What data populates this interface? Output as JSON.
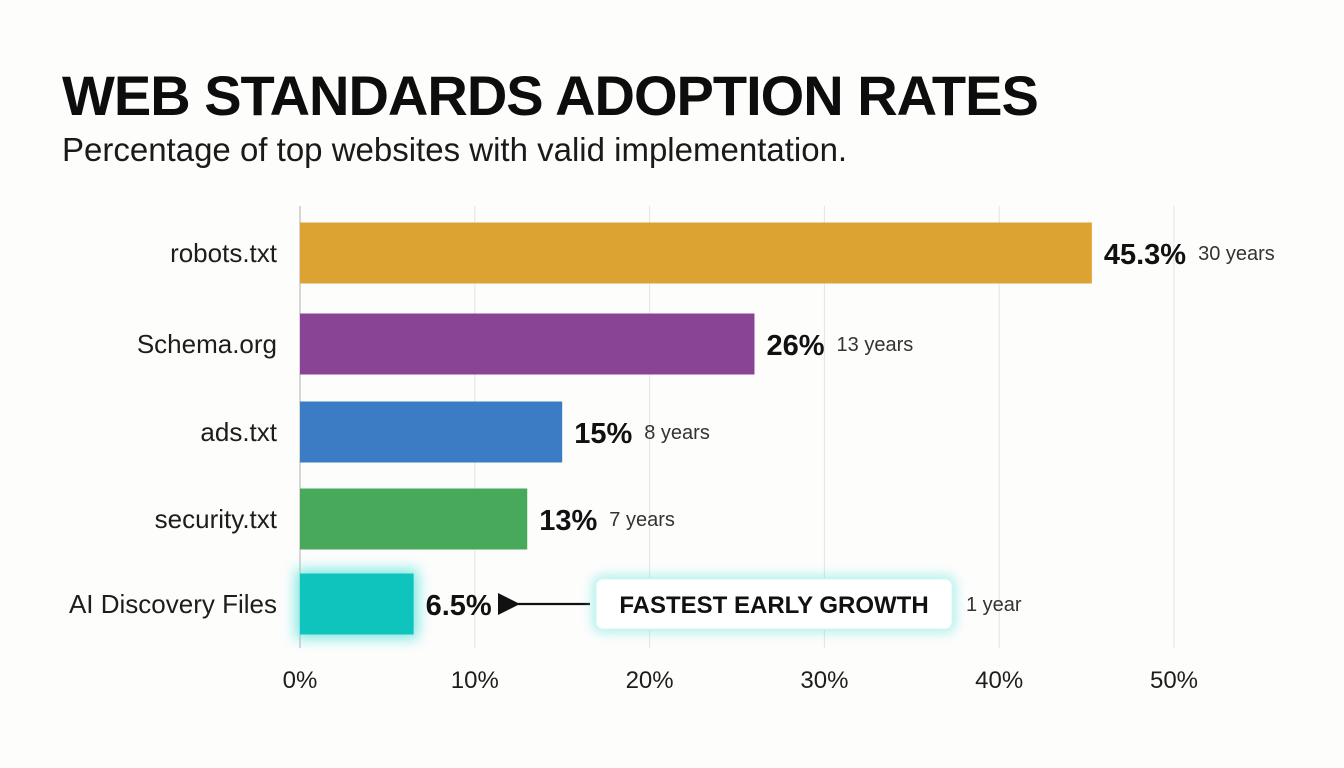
{
  "title": "WEB STANDARDS ADOPTION RATES",
  "subtitle": "Percentage of top websites with valid implementation.",
  "chart_data": {
    "type": "bar",
    "orientation": "horizontal",
    "title": "WEB STANDARDS ADOPTION RATES",
    "subtitle": "Percentage of top websites with valid implementation.",
    "categories": [
      "robots.txt",
      "Schema.org",
      "ads.txt",
      "security.txt",
      "AI Discovery Files"
    ],
    "values": [
      45.3,
      26,
      15,
      13,
      6.5
    ],
    "value_labels": [
      "45.3%",
      "26%",
      "15%",
      "13%",
      "6.5%"
    ],
    "ages": [
      "30 years",
      "13 years",
      "8 years",
      "7 years",
      "1 year"
    ],
    "colors": [
      "#dca232",
      "#8a4496",
      "#3b7cc4",
      "#48a95a",
      "#0ec4bc"
    ],
    "highlight_index": 4,
    "highlight_glow": "#5fe3dc",
    "xlim": [
      0,
      50
    ],
    "x_ticks": [
      0,
      10,
      20,
      30,
      40,
      50
    ],
    "x_tick_labels": [
      "0%",
      "10%",
      "20%",
      "30%",
      "40%",
      "50%"
    ],
    "grid": true,
    "legend": "none",
    "annotation": "FASTEST EARLY GROWTH"
  }
}
